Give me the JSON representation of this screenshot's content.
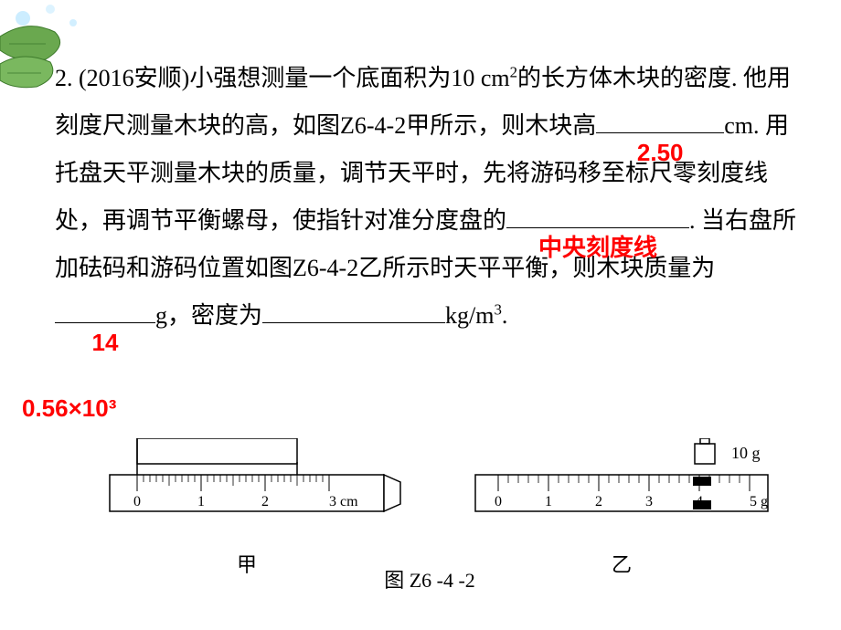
{
  "decor": {
    "leaf_fill": "#6aa84f",
    "leaf_stroke": "#3d7a2b",
    "bubble_colors": [
      "#bfe8ff",
      "#d4f0ff",
      "#a8dbff"
    ]
  },
  "problem": {
    "number": "2.",
    "source": "(2016安顺)",
    "t1": "小强想测量一个底面积为10 cm",
    "sup1": "2",
    "t2": "的长方体木块的密度. 他用刻度尺测量木块的高，如图Z6-4-2甲所示，则木块高",
    "ans1": "2.50",
    "t3": "cm. 用托盘天平测量木块的质量，调节天平时，先将游码移至标尺零刻度线处，再调节平衡螺母，使指针对准分度盘的",
    "ans2": "中央刻度线",
    "t4": ". 当右盘所加砝码和游码位置如图Z6-4-2乙所示时天平平衡，则木块质量为",
    "ans3": "14",
    "t5": "g，密度为",
    "t6": "kg/m",
    "sup2": "3",
    "t7": ".",
    "ans4": "0.56×10³"
  },
  "figure": {
    "ruler": {
      "ticks": [
        "0",
        "1",
        "2",
        "3 cm"
      ],
      "object_start": 0,
      "object_end": 2.5
    },
    "scale": {
      "ticks": [
        "0",
        "1",
        "2",
        "3",
        "4",
        "5 g"
      ],
      "weight_label": "10 g",
      "rider_pos": 4.0
    },
    "label_left": "甲",
    "label_right": "乙",
    "caption": "图 Z6 -4 -2"
  },
  "style": {
    "text_color": "#000000",
    "answer_color": "#ff0000",
    "font_size_body": 26,
    "font_size_fig": 22,
    "background": "#ffffff",
    "blank_widths": {
      "b1": 140,
      "b2": 200,
      "b3": 110,
      "b4": 200
    }
  }
}
